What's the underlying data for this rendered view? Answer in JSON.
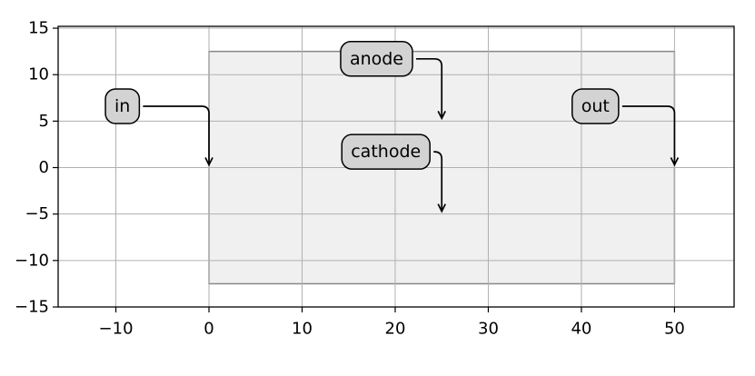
{
  "chart_data": {
    "type": "annotated-region",
    "xlim": [
      -16.2,
      56.4
    ],
    "ylim": [
      -15,
      15.2
    ],
    "xticks": [
      {
        "value": -10,
        "label": "−10"
      },
      0,
      10,
      20,
      30,
      40,
      50
    ],
    "yticks": [
      {
        "value": -15,
        "label": "−15"
      },
      {
        "value": -10,
        "label": "−10"
      },
      {
        "value": -5,
        "label": "−5"
      },
      0,
      5,
      10,
      15
    ],
    "grid": true,
    "region": {
      "x0": 0,
      "x1": 50,
      "y0": -12.5,
      "y1": 12.5,
      "color": "#f0f0f0",
      "edgecolor": "#888888"
    },
    "annotations": [
      {
        "text": "in",
        "xy": [
          0,
          0
        ],
        "xytext": [
          -9.3,
          6.6
        ]
      },
      {
        "text": "anode",
        "xy": [
          25,
          5
        ],
        "xytext": [
          18,
          11.7
        ]
      },
      {
        "text": "cathode",
        "xy": [
          25,
          -5
        ],
        "xytext": [
          19,
          1.7
        ]
      },
      {
        "text": "out",
        "xy": [
          50,
          0
        ],
        "xytext": [
          41.5,
          6.6
        ]
      }
    ],
    "label_color": "#d3d3d3"
  }
}
